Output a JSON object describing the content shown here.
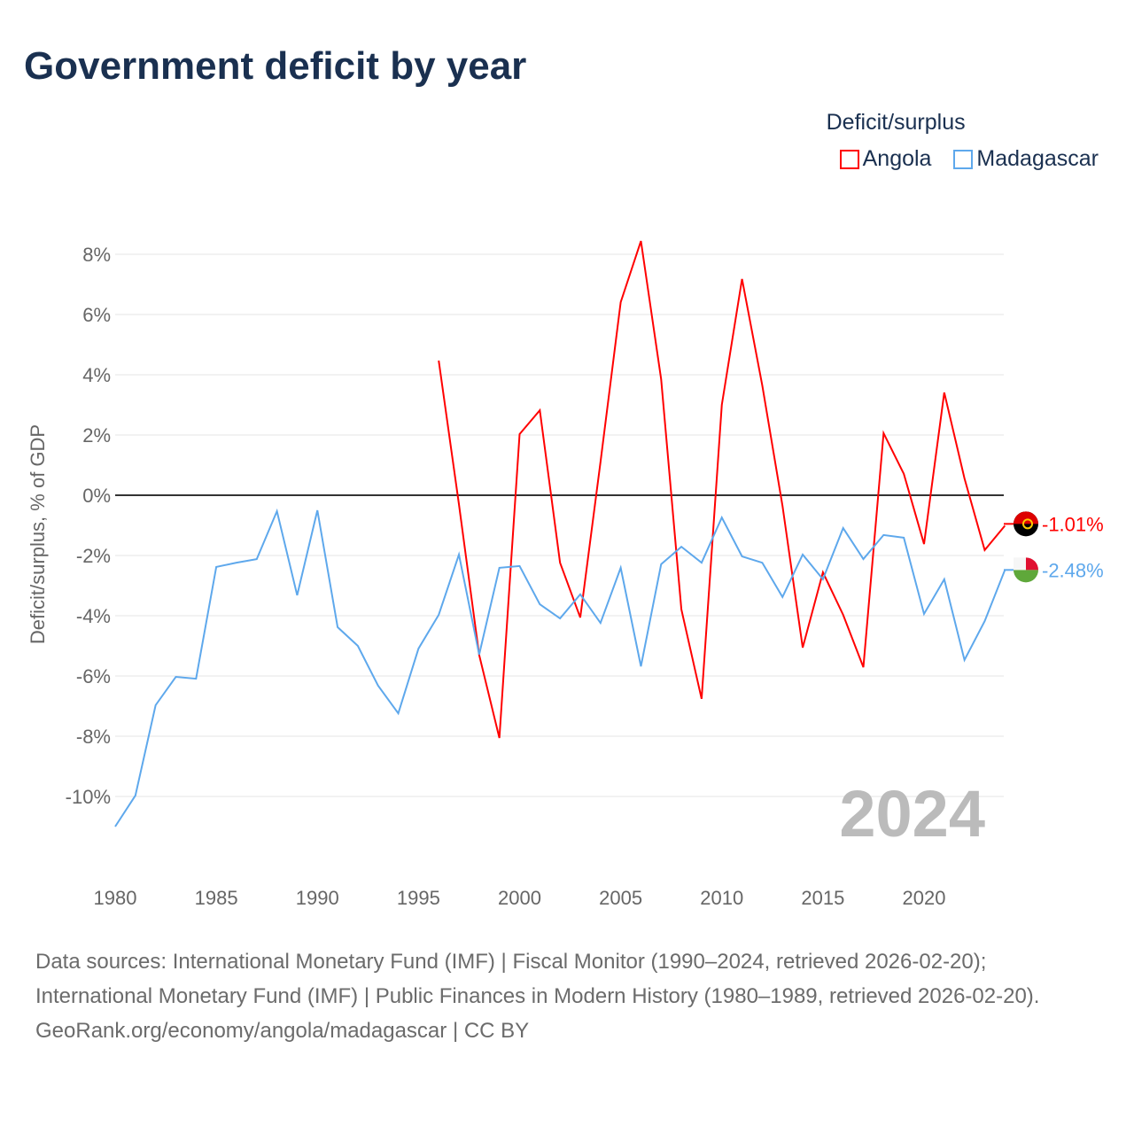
{
  "title": "Government deficit by year",
  "legend": {
    "title": "Deficit/surplus"
  },
  "footer": {
    "sources": "Data sources: International Monetary Fund (IMF) | Fiscal Monitor (1990–2024, retrieved 2026-02-20); International Monetary Fund (IMF) | Public Finances in Modern History (1980–1989, retrieved 2026-02-20).",
    "credit": "GeoRank.org/economy/angola/madagascar | CC BY"
  },
  "chart_data": {
    "type": "line",
    "title": "Government deficit by year",
    "ylabel": "Deficit/surplus, % of GDP",
    "xlabel": "",
    "xlim": [
      1980,
      2024
    ],
    "ylim": [
      -11,
      8.5
    ],
    "year_watermark": "2024",
    "xticks": [
      "1980",
      "1985",
      "1990",
      "1995",
      "2000",
      "2005",
      "2010",
      "2015",
      "2020"
    ],
    "yticks": [
      {
        "v": 8,
        "l": "8%"
      },
      {
        "v": 6,
        "l": "6%"
      },
      {
        "v": 4,
        "l": "4%"
      },
      {
        "v": 2,
        "l": "2%"
      },
      {
        "v": 0,
        "l": "0%"
      },
      {
        "v": -2,
        "l": "-2%"
      },
      {
        "v": -4,
        "l": "-4%"
      },
      {
        "v": -6,
        "l": "-6%"
      },
      {
        "v": -8,
        "l": "-8%"
      },
      {
        "v": -10,
        "l": "-10%"
      }
    ],
    "series": [
      {
        "name": "Angola",
        "color": "#ff0000",
        "end_label": "-1.01%",
        "start": 1996,
        "values": [
          4.47,
          -0.3,
          -5.3,
          -8.06,
          2.03,
          2.82,
          -2.24,
          -4.06,
          1.1,
          6.41,
          8.44,
          3.85,
          -3.79,
          -6.76,
          3.0,
          7.18,
          3.65,
          -0.35,
          -5.06,
          -2.56,
          -3.97,
          -5.71,
          2.06,
          0.71,
          -1.62,
          3.41,
          0.56,
          -1.82,
          -1.01
        ]
      },
      {
        "name": "Madagascar",
        "color": "#5ea8ec",
        "end_label": "-2.48%",
        "start": 1980,
        "values": [
          -11.0,
          -9.97,
          -6.97,
          -6.03,
          -6.09,
          -2.38,
          -2.24,
          -2.12,
          -0.53,
          -3.32,
          -0.5,
          -4.38,
          -5.0,
          -6.32,
          -7.24,
          -5.09,
          -3.97,
          -1.97,
          -5.29,
          -2.41,
          -2.35,
          -3.62,
          -4.09,
          -3.29,
          -4.24,
          -2.41,
          -5.68,
          -2.29,
          -1.71,
          -2.24,
          -0.74,
          -2.03,
          -2.24,
          -3.38,
          -1.97,
          -2.79,
          -1.09,
          -2.12,
          -1.32,
          -1.41,
          -3.94,
          -2.79,
          -5.47,
          -4.18,
          -2.48
        ]
      }
    ]
  }
}
